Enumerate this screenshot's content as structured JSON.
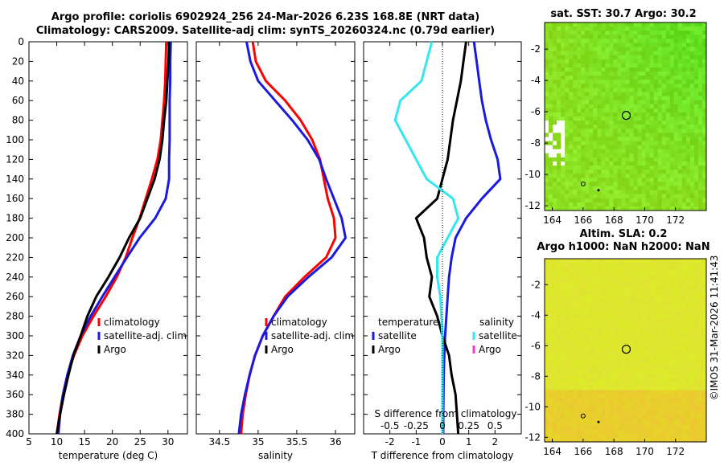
{
  "titles": {
    "line1": "Argo profile: coriolis 6902924_256 24-Mar-2026 6.23S 168.8E (NRT data)",
    "line2": "Climatology: CARS2009. Satellite-adj clim: synTS_20260324.nc (0.79d earlier)"
  },
  "map_titles": {
    "top": "sat. SST: 30.7 Argo: 30.2",
    "bottom1": "Altim. SLA: 0.2",
    "bottom2": "Argo h1000: NaN h2000: NaN"
  },
  "watermark": "©IMOS 31-Mar-2026 11:41:43",
  "colors": {
    "climatology": "#ff0000",
    "satellite": "#1a1adf",
    "argo": "#000000",
    "sal_sat": "#33e6f0",
    "sal_marker": "#ff33cc"
  },
  "legend1": {
    "items": [
      "climatology",
      "satellite-adj. clim",
      "Argo"
    ]
  },
  "legend2": {
    "items": [
      "climatology",
      "satellite-adj. clim",
      "Argo"
    ]
  },
  "legend3": {
    "temp_title": "temperature",
    "sal_title": "salinity",
    "temp_items": [
      "satellite",
      "Argo"
    ],
    "sal_items": [
      "satellite",
      "Argo"
    ]
  },
  "chart_data": [
    {
      "type": "line",
      "title": "",
      "xlabel": "temperature (deg C)",
      "ylabel": "",
      "xlim": [
        5,
        33.5
      ],
      "ylim": [
        400,
        0
      ],
      "xticks": [
        5,
        10,
        15,
        20,
        25,
        30
      ],
      "yticks": [
        0,
        20,
        40,
        60,
        80,
        100,
        120,
        140,
        160,
        180,
        200,
        220,
        240,
        260,
        280,
        300,
        320,
        340,
        360,
        380,
        400
      ],
      "series": [
        {
          "name": "climatology",
          "depth": [
            0,
            20,
            40,
            60,
            80,
            100,
            120,
            140,
            160,
            180,
            200,
            220,
            240,
            260,
            280,
            300,
            320,
            340,
            360,
            380,
            400
          ],
          "values": [
            29.7,
            29.6,
            29.5,
            29.3,
            29.0,
            28.7,
            28.1,
            27.1,
            26.0,
            24.9,
            23.6,
            22.4,
            20.8,
            18.8,
            16.6,
            14.6,
            13.1,
            11.9,
            11.1,
            10.5,
            10.0
          ]
        },
        {
          "name": "satellite-adj. clim",
          "depth": [
            0,
            20,
            40,
            60,
            80,
            100,
            120,
            140,
            160,
            180,
            200,
            220,
            240,
            260,
            280,
            300,
            320,
            340,
            360,
            380,
            400
          ],
          "values": [
            30.5,
            30.4,
            30.4,
            30.3,
            30.3,
            30.3,
            30.2,
            30.2,
            29.6,
            27.7,
            24.9,
            22.6,
            20.4,
            18.2,
            16.1,
            14.3,
            12.9,
            11.9,
            11.1,
            10.6,
            10.3
          ]
        },
        {
          "name": "Argo",
          "depth": [
            0,
            20,
            40,
            60,
            80,
            100,
            120,
            140,
            160,
            180,
            200,
            220,
            240,
            260,
            280,
            300,
            320,
            340,
            360,
            380,
            400
          ],
          "values": [
            30.2,
            30.1,
            29.9,
            29.7,
            29.3,
            29.0,
            28.5,
            27.6,
            26.3,
            25.0,
            23.0,
            21.3,
            19.3,
            17.1,
            15.5,
            14.3,
            13.0,
            12.1,
            11.3,
            10.6,
            10.0
          ]
        }
      ]
    },
    {
      "type": "line",
      "title": "",
      "xlabel": "salinity",
      "ylabel": "",
      "xlim": [
        34.2,
        36.25
      ],
      "ylim": [
        400,
        0
      ],
      "xticks": [
        34.5,
        35,
        35.5,
        36
      ],
      "series": [
        {
          "name": "climatology",
          "depth": [
            0,
            20,
            40,
            60,
            80,
            100,
            120,
            140,
            160,
            180,
            200,
            220,
            240,
            260,
            280,
            300,
            320,
            340,
            360,
            380,
            400
          ],
          "values": [
            34.93,
            34.97,
            35.1,
            35.35,
            35.55,
            35.7,
            35.8,
            35.85,
            35.9,
            35.98,
            36.0,
            35.88,
            35.6,
            35.35,
            35.2,
            35.06,
            34.96,
            34.89,
            34.84,
            34.8,
            34.78
          ]
        },
        {
          "name": "satellite-adj. clim",
          "depth": [
            0,
            20,
            40,
            60,
            80,
            100,
            120,
            140,
            160,
            180,
            200,
            220,
            240,
            260,
            280,
            300,
            320,
            340,
            360,
            380,
            400
          ],
          "values": [
            34.85,
            34.9,
            35.0,
            35.22,
            35.44,
            35.64,
            35.79,
            35.88,
            35.98,
            36.08,
            36.13,
            35.95,
            35.65,
            35.38,
            35.2,
            35.06,
            34.96,
            34.89,
            34.83,
            34.78,
            34.75
          ]
        }
      ]
    },
    {
      "type": "line",
      "title": "",
      "xlabel": "T difference from climatology",
      "xlabel2": "S difference from climatology",
      "ylabel": "",
      "xlim": [
        -3,
        3
      ],
      "ylim": [
        400,
        0
      ],
      "xticks": [
        -2,
        -1,
        0,
        1,
        2
      ],
      "xticks2": [
        -0.5,
        -0.25,
        0,
        0.25,
        0.5
      ],
      "series": [
        {
          "name": "temperature satellite",
          "depth": [
            0,
            20,
            40,
            60,
            80,
            100,
            120,
            140,
            160,
            180,
            200,
            220,
            240,
            260,
            280,
            300,
            320,
            340,
            360,
            380,
            400
          ],
          "values": [
            1.2,
            1.3,
            1.4,
            1.5,
            1.65,
            1.85,
            2.1,
            2.2,
            1.5,
            0.9,
            0.5,
            0.35,
            0.25,
            0.2,
            0.15,
            0.1,
            0.07,
            0.05,
            0.04,
            0.03,
            0.03
          ]
        },
        {
          "name": "temperature Argo",
          "depth": [
            0,
            20,
            40,
            60,
            80,
            100,
            120,
            140,
            160,
            180,
            200,
            220,
            240,
            260,
            280,
            300,
            320,
            340,
            360,
            380,
            400
          ],
          "values": [
            0.9,
            0.8,
            0.7,
            0.55,
            0.4,
            0.3,
            0.2,
            0.0,
            -0.2,
            -1.0,
            -0.7,
            -0.6,
            -0.4,
            -0.5,
            -0.2,
            0.0,
            0.25,
            0.35,
            0.5,
            0.55,
            0.6
          ]
        },
        {
          "name": "salinity satellite",
          "depth": [
            0,
            20,
            40,
            60,
            80,
            100,
            120,
            140,
            160,
            180,
            200,
            220,
            240,
            260,
            280,
            300,
            320,
            340,
            360,
            380,
            400
          ],
          "values": [
            -0.1,
            -0.15,
            -0.2,
            -0.4,
            -0.45,
            -0.35,
            -0.25,
            -0.15,
            0.1,
            0.15,
            0.05,
            -0.05,
            -0.05,
            -0.02,
            -0.01,
            0.0,
            0.0,
            0.0,
            0.0,
            0.0,
            0.0
          ]
        }
      ]
    },
    {
      "type": "heatmap",
      "title": "sat. SST: 30.7 Argo: 30.2",
      "xlim": [
        163.5,
        174
      ],
      "ylim": [
        -12.3,
        -0.3
      ],
      "xticks": [
        164,
        166,
        168,
        170,
        172
      ],
      "yticks": [
        -2,
        -4,
        -6,
        -8,
        -10,
        -12
      ],
      "marker": [
        168.8,
        -6.23
      ]
    },
    {
      "type": "heatmap",
      "title": "Altim. SLA: 0.2",
      "xlim": [
        163.5,
        174
      ],
      "ylim": [
        -12.3,
        -0.3
      ],
      "xticks": [
        164,
        166,
        168,
        170,
        172
      ],
      "yticks": [
        -2,
        -4,
        -6,
        -8,
        -10,
        -12
      ],
      "marker": [
        168.8,
        -6.23
      ]
    }
  ]
}
